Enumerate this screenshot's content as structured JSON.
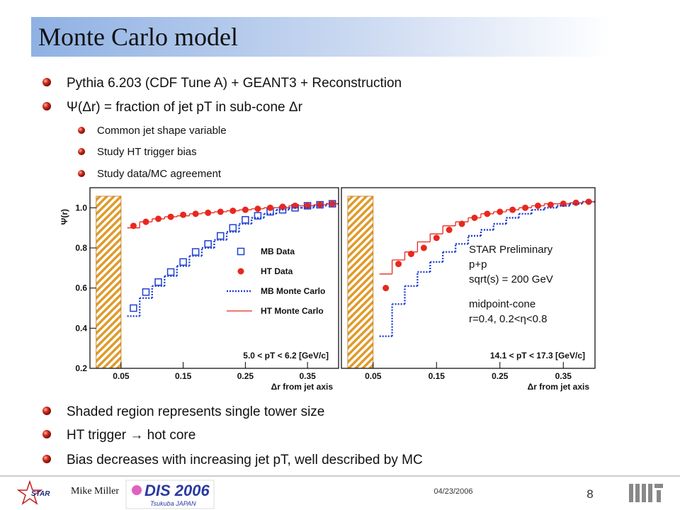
{
  "slide": {
    "title": "Monte Carlo model",
    "bullets": [
      "Pythia 6.203 (CDF Tune A)  +  GEANT3  +  Reconstruction",
      "Ψ(Δr) = fraction of jet pT in sub-cone Δr"
    ],
    "sub_bullets": [
      "Common jet shape variable",
      "Study HT trigger bias",
      "Study data/MC agreement"
    ],
    "lower_bullets": [
      "Shaded region represents single tower size",
      "HT trigger → hot core",
      "Bias decreases with increasing jet pT, well described by MC"
    ],
    "footer": {
      "author": "Mike Miller",
      "date": "04/23/2006",
      "page": "8",
      "logo_star": "STAR",
      "logo_dis": "DIS 2006",
      "logo_dis_sub": "Tsukuba JAPAN"
    }
  },
  "chart_data": [
    {
      "type": "step-points",
      "ylabel": "Ψ(r)",
      "xlabel": "Δr from jet axis",
      "label": "5.0 < pT < 6.2 [GeV/c]",
      "xlim": [
        0,
        0.4
      ],
      "ylim": [
        0.2,
        1.1
      ],
      "xticks": [
        0.05,
        0.15,
        0.25,
        0.35
      ],
      "yticks": [
        0.2,
        0.4,
        0.6,
        0.8,
        {
          "value": 1,
          "label": "1.0"
        }
      ],
      "shade": [
        0.01,
        0.05
      ],
      "x": [
        0.07,
        0.09,
        0.11,
        0.13,
        0.15,
        0.17,
        0.19,
        0.21,
        0.23,
        0.25,
        0.27,
        0.29,
        0.31,
        0.33,
        0.35,
        0.37,
        0.39
      ],
      "series": [
        {
          "name": "MB Data",
          "color": "#1f3fd0",
          "style": "square",
          "values": [
            0.5,
            0.58,
            0.63,
            0.68,
            0.73,
            0.78,
            0.82,
            0.86,
            0.9,
            0.94,
            0.96,
            0.98,
            0.99,
            1.0,
            1.01,
            1.015,
            1.02
          ]
        },
        {
          "name": "HT Data",
          "color": "#e8281e",
          "style": "circle",
          "values": [
            0.91,
            0.93,
            0.945,
            0.955,
            0.965,
            0.97,
            0.975,
            0.98,
            0.985,
            0.99,
            0.995,
            1.0,
            1.005,
            1.01,
            1.01,
            1.015,
            1.02
          ]
        },
        {
          "name": "MB Monte Carlo",
          "color": "#1f3fd0",
          "style": "dotted-step",
          "values": [
            0.46,
            0.55,
            0.61,
            0.66,
            0.71,
            0.76,
            0.8,
            0.84,
            0.88,
            0.92,
            0.95,
            0.97,
            0.99,
            1.0,
            1.0,
            1.01,
            1.02
          ]
        },
        {
          "name": "HT Monte Carlo",
          "color": "#e8281e",
          "style": "step",
          "values": [
            0.9,
            0.93,
            0.945,
            0.955,
            0.96,
            0.97,
            0.975,
            0.98,
            0.985,
            0.99,
            0.995,
            1.0,
            1.0,
            1.01,
            1.01,
            1.015,
            1.02
          ]
        }
      ]
    },
    {
      "type": "step-points",
      "xlabel": "Δr from jet axis",
      "label": "14.1 < pT < 17.3 [GeV/c]",
      "annotations": [
        "STAR Preliminary",
        "p+p",
        "sqrt(s) = 200 GeV",
        "midpoint-cone",
        "r=0.4, 0.2<η<0.8"
      ],
      "xlim": [
        0,
        0.4
      ],
      "ylim": [
        0.2,
        1.1
      ],
      "xticks": [
        0.05,
        0.15,
        0.25,
        0.35
      ],
      "shade": [
        0.01,
        0.05
      ],
      "x": [
        0.07,
        0.09,
        0.11,
        0.13,
        0.15,
        0.17,
        0.19,
        0.21,
        0.23,
        0.25,
        0.27,
        0.29,
        0.31,
        0.33,
        0.35,
        0.37,
        0.39
      ],
      "series": [
        {
          "color": "#e8281e",
          "style": "circle",
          "values": [
            0.6,
            0.72,
            0.77,
            0.8,
            0.85,
            0.89,
            0.92,
            0.95,
            0.97,
            0.98,
            0.99,
            1.0,
            1.01,
            1.015,
            1.02,
            1.025,
            1.03
          ]
        },
        {
          "color": "#1f3fd0",
          "style": "dotted-step",
          "values": [
            0.36,
            0.52,
            0.61,
            0.68,
            0.73,
            0.78,
            0.82,
            0.86,
            0.89,
            0.92,
            0.95,
            0.97,
            0.99,
            1.0,
            1.01,
            1.02,
            1.03
          ]
        },
        {
          "color": "#e8281e",
          "style": "step",
          "values": [
            0.67,
            0.74,
            0.78,
            0.83,
            0.87,
            0.91,
            0.93,
            0.95,
            0.97,
            0.98,
            0.99,
            1.0,
            1.01,
            1.02,
            1.02,
            1.025,
            1.03
          ]
        }
      ]
    }
  ]
}
